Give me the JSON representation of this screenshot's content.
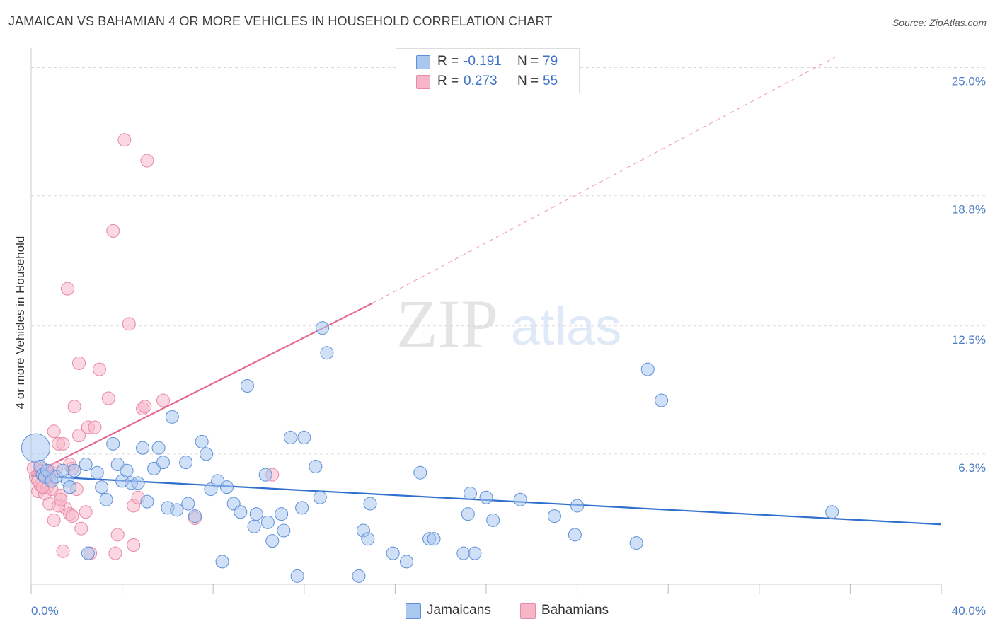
{
  "title": "JAMAICAN VS BAHAMIAN 4 OR MORE VEHICLES IN HOUSEHOLD CORRELATION CHART",
  "source": "Source: ZipAtlas.com",
  "watermark": {
    "zip": "ZIP",
    "atlas": "atlas"
  },
  "legend": {
    "r_label": "R =",
    "n_label": "N =",
    "rows": [
      {
        "name": "Jamaicans",
        "r": "-0.191",
        "n": "79",
        "color": "#a9c7ef"
      },
      {
        "name": "Bahamians",
        "r": "0.273",
        "n": "55",
        "color": "#f7b6c8"
      }
    ]
  },
  "colors": {
    "jamaican_fill": "#a9c7ef",
    "jamaican_stroke": "#5d8fd8",
    "jamaican_line": "#2f6fce",
    "bahamian_fill": "#f7b6c8",
    "bahamian_stroke": "#e889a6",
    "bahamian_line": "#e56a92",
    "grid": "#d9d9d9",
    "tick_text": "#4a7cc6"
  },
  "chart_data": {
    "type": "scatter",
    "title": "JAMAICAN VS BAHAMIAN 4 OR MORE VEHICLES IN HOUSEHOLD CORRELATION CHART",
    "xlabel": "",
    "ylabel": "4 or more Vehicles in Household",
    "xlim": [
      0,
      40
    ],
    "ylim": [
      0,
      25.6
    ],
    "x_tick_labels": [
      "0.0%",
      "40.0%"
    ],
    "y_ticks": [
      6.3,
      12.5,
      18.8,
      25.0
    ],
    "y_tick_labels": [
      "6.3%",
      "12.5%",
      "18.8%",
      "25.0%"
    ],
    "grid": true,
    "legend_position": "top-center",
    "series": [
      {
        "name": "Jamaicans",
        "r": -0.191,
        "n": 79,
        "trend": {
          "x": [
            0,
            40
          ],
          "y": [
            5.25,
            2.9
          ],
          "style": "solid"
        },
        "points": [
          [
            0.2,
            6.6,
            "large"
          ],
          [
            0.4,
            5.7
          ],
          [
            0.5,
            5.3
          ],
          [
            0.6,
            5.2
          ],
          [
            0.7,
            5.5
          ],
          [
            0.9,
            5.0
          ],
          [
            1.1,
            5.2
          ],
          [
            1.4,
            5.5
          ],
          [
            1.6,
            5.0
          ],
          [
            1.7,
            4.7
          ],
          [
            1.9,
            5.5
          ],
          [
            2.4,
            5.8
          ],
          [
            2.5,
            1.5
          ],
          [
            2.9,
            5.4
          ],
          [
            3.1,
            4.7
          ],
          [
            3.3,
            4.1
          ],
          [
            3.6,
            6.8
          ],
          [
            3.8,
            5.8
          ],
          [
            4.0,
            5.0
          ],
          [
            4.2,
            5.5
          ],
          [
            4.4,
            4.9
          ],
          [
            4.7,
            4.9
          ],
          [
            4.9,
            6.6
          ],
          [
            5.1,
            4.0
          ],
          [
            5.4,
            5.6
          ],
          [
            5.6,
            6.6
          ],
          [
            5.8,
            5.9
          ],
          [
            6.0,
            3.7
          ],
          [
            6.2,
            8.1
          ],
          [
            6.4,
            3.6
          ],
          [
            6.8,
            5.9
          ],
          [
            6.9,
            3.9
          ],
          [
            7.2,
            3.3
          ],
          [
            7.5,
            6.9
          ],
          [
            7.7,
            6.3
          ],
          [
            7.9,
            4.6
          ],
          [
            8.2,
            5.0
          ],
          [
            8.4,
            1.1
          ],
          [
            8.6,
            4.7
          ],
          [
            8.9,
            3.9
          ],
          [
            9.2,
            3.5
          ],
          [
            9.5,
            9.6
          ],
          [
            9.8,
            2.8
          ],
          [
            9.9,
            3.4
          ],
          [
            10.3,
            5.3
          ],
          [
            10.4,
            3.0
          ],
          [
            10.6,
            2.1
          ],
          [
            11.0,
            3.4
          ],
          [
            11.1,
            2.6
          ],
          [
            11.4,
            7.1
          ],
          [
            11.7,
            0.4
          ],
          [
            11.9,
            3.7
          ],
          [
            12.0,
            7.1
          ],
          [
            12.5,
            5.7
          ],
          [
            12.7,
            4.2
          ],
          [
            12.8,
            12.4
          ],
          [
            13.0,
            11.2
          ],
          [
            14.4,
            0.4
          ],
          [
            14.6,
            2.6
          ],
          [
            14.8,
            2.2
          ],
          [
            14.9,
            3.9
          ],
          [
            15.9,
            1.5
          ],
          [
            16.5,
            1.1
          ],
          [
            17.1,
            5.4
          ],
          [
            17.5,
            2.2
          ],
          [
            17.7,
            2.2
          ],
          [
            19.0,
            1.5
          ],
          [
            19.2,
            3.4
          ],
          [
            19.3,
            4.4
          ],
          [
            19.5,
            1.5
          ],
          [
            20.0,
            4.2
          ],
          [
            20.3,
            3.1
          ],
          [
            21.5,
            4.1
          ],
          [
            23.0,
            3.3
          ],
          [
            23.9,
            2.4
          ],
          [
            24.0,
            3.8
          ],
          [
            26.6,
            2.0
          ],
          [
            27.1,
            10.4
          ],
          [
            27.7,
            8.9
          ],
          [
            35.2,
            3.5
          ]
        ]
      },
      {
        "name": "Bahamians",
        "r": 0.273,
        "n": 55,
        "trend": {
          "x": [
            0,
            15.0
          ],
          "y": [
            5.3,
            13.6
          ],
          "style": "solid",
          "extended": {
            "x": [
              15.0,
              35.5
            ],
            "y": [
              13.6,
              25.6
            ],
            "style": "dashed"
          }
        },
        "points": [
          [
            0.1,
            5.6
          ],
          [
            0.2,
            5.2
          ],
          [
            0.3,
            4.5
          ],
          [
            0.4,
            4.8
          ],
          [
            0.5,
            5.6
          ],
          [
            0.6,
            5.3
          ],
          [
            0.7,
            4.7
          ],
          [
            0.8,
            3.9
          ],
          [
            0.9,
            5.4
          ],
          [
            1.0,
            3.1
          ],
          [
            1.0,
            7.4
          ],
          [
            1.1,
            5.6
          ],
          [
            1.2,
            6.8
          ],
          [
            1.3,
            4.3
          ],
          [
            1.4,
            6.8
          ],
          [
            1.4,
            1.6
          ],
          [
            1.5,
            3.7
          ],
          [
            1.6,
            14.3
          ],
          [
            1.7,
            3.4
          ],
          [
            1.8,
            5.6
          ],
          [
            1.8,
            3.3
          ],
          [
            1.9,
            8.6
          ],
          [
            2.0,
            4.6
          ],
          [
            2.1,
            7.2
          ],
          [
            2.1,
            10.7
          ],
          [
            2.2,
            2.7
          ],
          [
            2.4,
            3.5
          ],
          [
            2.5,
            7.6
          ],
          [
            2.6,
            1.5
          ],
          [
            2.8,
            7.6
          ],
          [
            3.0,
            10.4
          ],
          [
            3.4,
            9.0
          ],
          [
            3.6,
            17.1
          ],
          [
            3.7,
            1.5
          ],
          [
            3.8,
            2.4
          ],
          [
            4.1,
            21.5
          ],
          [
            4.3,
            12.6
          ],
          [
            4.5,
            1.9
          ],
          [
            4.5,
            3.8
          ],
          [
            4.7,
            4.2
          ],
          [
            4.9,
            8.5
          ],
          [
            5.0,
            8.6
          ],
          [
            5.1,
            20.5
          ],
          [
            5.8,
            8.9
          ],
          [
            7.2,
            3.2
          ],
          [
            10.6,
            5.3
          ],
          [
            0.3,
            5.0
          ],
          [
            0.6,
            4.4
          ],
          [
            0.9,
            4.6
          ],
          [
            1.2,
            3.8
          ],
          [
            1.3,
            4.1
          ],
          [
            1.7,
            5.8
          ],
          [
            0.4,
            5.5
          ],
          [
            0.8,
            5.2
          ],
          [
            0.5,
            4.7
          ]
        ]
      }
    ]
  }
}
